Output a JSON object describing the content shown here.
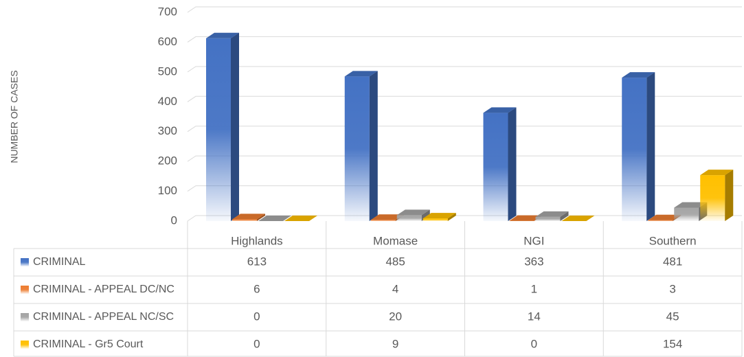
{
  "chart_data": {
    "type": "bar3d",
    "y_label": "NUMBER OF CASES",
    "categories": [
      "Highlands",
      "Momase",
      "NGI",
      "Southern"
    ],
    "series": [
      {
        "name": "CRIMINAL",
        "color": "#4472c4",
        "values": [
          613,
          485,
          363,
          481
        ]
      },
      {
        "name": "CRIMINAL - APPEAL DC/NC",
        "color": "#ed7d31",
        "values": [
          6,
          4,
          1,
          3
        ]
      },
      {
        "name": "CRIMINAL - APPEAL NC/SC",
        "color": "#a5a5a5",
        "values": [
          0,
          20,
          14,
          45
        ]
      },
      {
        "name": "CRIMINAL - Gr5 Court",
        "color": "#ffc000",
        "values": [
          0,
          9,
          0,
          154
        ]
      }
    ],
    "ylim": [
      0,
      700
    ],
    "yticks": [
      0,
      100,
      200,
      300,
      400,
      500,
      600,
      700
    ],
    "grid": true
  }
}
